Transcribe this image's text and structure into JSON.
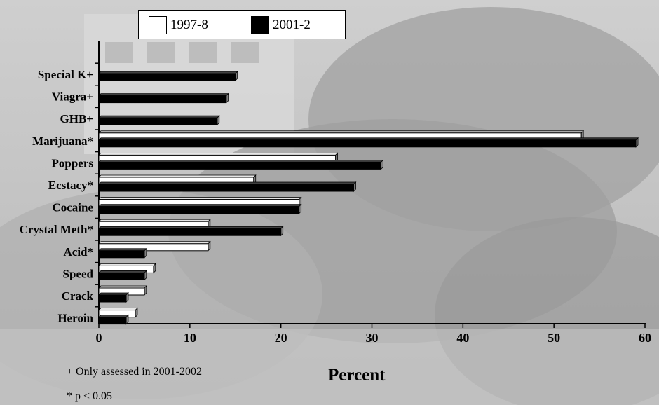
{
  "colors": {
    "series_1997": "#ffffff",
    "series_2001": "#000000",
    "axis": "#000000"
  },
  "legend": {
    "items": [
      {
        "label": "1997-8",
        "color": "#ffffff"
      },
      {
        "label": "2001-2",
        "color": "#000000"
      }
    ]
  },
  "notes": {
    "plus": "+  Only assessed in 2001-2002",
    "star": "*  p < 0.05"
  },
  "chart_data": {
    "type": "bar",
    "orientation": "horizontal",
    "categories": [
      "Special K+",
      "Viagra+",
      "GHB+",
      "Marijuana*",
      "Poppers",
      "Ecstacy*",
      "Cocaine",
      "Crystal Meth*",
      "Acid*",
      "Speed",
      "Crack",
      "Heroin"
    ],
    "series": [
      {
        "name": "1997-8",
        "values": [
          null,
          null,
          null,
          53,
          26,
          17,
          22,
          12,
          12,
          6,
          5,
          4
        ]
      },
      {
        "name": "2001-2",
        "values": [
          15,
          14,
          13,
          59,
          31,
          28,
          22,
          20,
          5,
          5,
          3,
          3
        ]
      }
    ],
    "xlabel": "Percent",
    "ylabel": "",
    "xlim": [
      0,
      60
    ],
    "xticks": [
      0,
      10,
      20,
      30,
      40,
      50,
      60
    ],
    "grid": false,
    "legend_position": "top"
  }
}
